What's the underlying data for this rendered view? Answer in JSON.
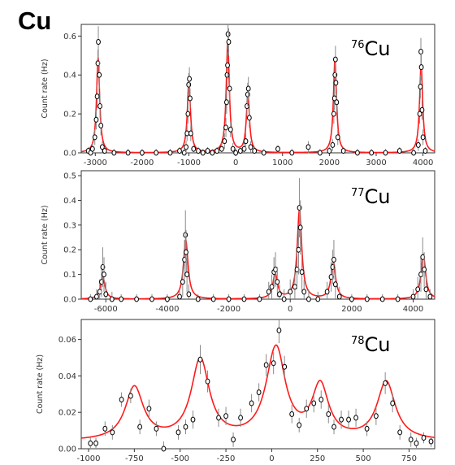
{
  "figure_label": "Cu",
  "colors": {
    "fit": "#ff1a1a",
    "points": "#000000",
    "errorbar": "#8a8a8a",
    "frame": "#333333"
  },
  "chart_data": [
    {
      "type": "scatter",
      "isotope": {
        "mass": "76",
        "symbol": "Cu"
      },
      "ylabel": "Count rate (Hz)",
      "xlim": [
        -3300,
        4250
      ],
      "ylim": [
        0,
        0.66
      ],
      "xticks": [
        -3000,
        -2000,
        -1000,
        0,
        1000,
        2000,
        3000,
        4000
      ],
      "yticks": [
        0.0,
        0.2,
        0.4,
        0.6
      ],
      "ytick_labels": [
        "0.0",
        "0.2",
        "0.4",
        "0.6"
      ],
      "fit_peaks": [
        [
          -2940,
          0.49,
          40
        ],
        [
          -1000,
          0.37,
          40
        ],
        [
          -170,
          0.57,
          40
        ],
        [
          260,
          0.3,
          40
        ],
        [
          2120,
          0.48,
          40
        ],
        [
          3960,
          0.45,
          40
        ]
      ],
      "points": [
        [
          -3150,
          0.01,
          0.02
        ],
        [
          -3100,
          0.0,
          0.01
        ],
        [
          -3060,
          0.02,
          0.03
        ],
        [
          -3010,
          0.08,
          0.04
        ],
        [
          -2980,
          0.17,
          0.05
        ],
        [
          -2960,
          0.29,
          0.06
        ],
        [
          -2945,
          0.46,
          0.07
        ],
        [
          -2935,
          0.57,
          0.08
        ],
        [
          -2915,
          0.4,
          0.07
        ],
        [
          -2900,
          0.24,
          0.06
        ],
        [
          -2880,
          0.14,
          0.05
        ],
        [
          -2850,
          0.03,
          0.03
        ],
        [
          -2800,
          0.01,
          0.02
        ],
        [
          -2600,
          0.0,
          0.02
        ],
        [
          -2300,
          0.0,
          0.02
        ],
        [
          -2000,
          0.0,
          0.02
        ],
        [
          -1700,
          0.0,
          0.02
        ],
        [
          -1400,
          0.0,
          0.02
        ],
        [
          -1200,
          0.01,
          0.02
        ],
        [
          -1100,
          0.0,
          0.02
        ],
        [
          -1060,
          0.03,
          0.03
        ],
        [
          -1040,
          0.1,
          0.04
        ],
        [
          -1020,
          0.2,
          0.05
        ],
        [
          -1005,
          0.35,
          0.06
        ],
        [
          -990,
          0.38,
          0.06
        ],
        [
          -975,
          0.28,
          0.05
        ],
        [
          -960,
          0.1,
          0.04
        ],
        [
          -900,
          0.02,
          0.02
        ],
        [
          -800,
          0.01,
          0.02
        ],
        [
          -700,
          0.0,
          0.02
        ],
        [
          -600,
          0.01,
          0.02
        ],
        [
          -500,
          0.0,
          0.02
        ],
        [
          -400,
          0.01,
          0.02
        ],
        [
          -300,
          0.02,
          0.03
        ],
        [
          -240,
          0.06,
          0.04
        ],
        [
          -210,
          0.13,
          0.05
        ],
        [
          -195,
          0.26,
          0.06
        ],
        [
          -185,
          0.4,
          0.07
        ],
        [
          -175,
          0.45,
          0.07
        ],
        [
          -165,
          0.61,
          0.08
        ],
        [
          -150,
          0.57,
          0.07
        ],
        [
          -130,
          0.33,
          0.06
        ],
        [
          -110,
          0.12,
          0.04
        ],
        [
          -60,
          0.02,
          0.03
        ],
        [
          0,
          0.0,
          0.02
        ],
        [
          100,
          0.01,
          0.02
        ],
        [
          180,
          0.02,
          0.03
        ],
        [
          215,
          0.06,
          0.04
        ],
        [
          240,
          0.24,
          0.05
        ],
        [
          255,
          0.3,
          0.06
        ],
        [
          270,
          0.33,
          0.06
        ],
        [
          290,
          0.18,
          0.05
        ],
        [
          320,
          0.03,
          0.03
        ],
        [
          400,
          0.01,
          0.02
        ],
        [
          600,
          0.0,
          0.02
        ],
        [
          900,
          0.02,
          0.02
        ],
        [
          1200,
          0.0,
          0.02
        ],
        [
          1550,
          0.03,
          0.03
        ],
        [
          1800,
          0.0,
          0.02
        ],
        [
          2000,
          0.01,
          0.02
        ],
        [
          2070,
          0.04,
          0.03
        ],
        [
          2095,
          0.2,
          0.05
        ],
        [
          2110,
          0.28,
          0.06
        ],
        [
          2120,
          0.4,
          0.06
        ],
        [
          2130,
          0.48,
          0.07
        ],
        [
          2140,
          0.36,
          0.06
        ],
        [
          2155,
          0.26,
          0.05
        ],
        [
          2180,
          0.08,
          0.04
        ],
        [
          2300,
          0.01,
          0.02
        ],
        [
          2600,
          0.0,
          0.02
        ],
        [
          2900,
          0.0,
          0.02
        ],
        [
          3200,
          0.0,
          0.02
        ],
        [
          3500,
          0.01,
          0.02
        ],
        [
          3800,
          0.0,
          0.02
        ],
        [
          3900,
          0.04,
          0.03
        ],
        [
          3930,
          0.2,
          0.05
        ],
        [
          3945,
          0.34,
          0.06
        ],
        [
          3955,
          0.52,
          0.07
        ],
        [
          3965,
          0.44,
          0.07
        ],
        [
          3980,
          0.22,
          0.05
        ],
        [
          4000,
          0.08,
          0.04
        ],
        [
          4050,
          0.01,
          0.02
        ]
      ]
    },
    {
      "type": "scatter",
      "isotope": {
        "mass": "77",
        "symbol": "Cu"
      },
      "ylabel": "Count rate (Hz)",
      "xlim": [
        -6800,
        4700
      ],
      "ylim": [
        0,
        0.52
      ],
      "xticks": [
        -6000,
        -4000,
        -2000,
        0,
        2000,
        4000
      ],
      "yticks": [
        0.0,
        0.1,
        0.2,
        0.3,
        0.4,
        0.5
      ],
      "ytick_labels": [
        "0.0",
        "0.1",
        "0.2",
        "0.3",
        "0.4",
        "0.5"
      ],
      "fit_peaks": [
        [
          -6100,
          0.09,
          90
        ],
        [
          -3400,
          0.24,
          90
        ],
        [
          -490,
          0.1,
          90
        ],
        [
          300,
          0.36,
          90
        ],
        [
          1400,
          0.15,
          90
        ],
        [
          4330,
          0.18,
          90
        ]
      ],
      "points": [
        [
          -6500,
          0.0,
          0.02
        ],
        [
          -6300,
          0.01,
          0.03
        ],
        [
          -6200,
          0.03,
          0.05
        ],
        [
          -6140,
          0.07,
          0.06
        ],
        [
          -6100,
          0.13,
          0.08
        ],
        [
          -6060,
          0.1,
          0.07
        ],
        [
          -6000,
          0.02,
          0.05
        ],
        [
          -5800,
          0.0,
          0.03
        ],
        [
          -5500,
          0.0,
          0.02
        ],
        [
          -5000,
          0.0,
          0.02
        ],
        [
          -4500,
          0.0,
          0.02
        ],
        [
          -4000,
          0.0,
          0.02
        ],
        [
          -3600,
          0.01,
          0.03
        ],
        [
          -3500,
          0.07,
          0.06
        ],
        [
          -3440,
          0.16,
          0.08
        ],
        [
          -3410,
          0.26,
          0.1
        ],
        [
          -3390,
          0.19,
          0.09
        ],
        [
          -3360,
          0.1,
          0.07
        ],
        [
          -3300,
          0.02,
          0.04
        ],
        [
          -3000,
          0.0,
          0.02
        ],
        [
          -2500,
          0.0,
          0.02
        ],
        [
          -2000,
          0.0,
          0.02
        ],
        [
          -1500,
          0.0,
          0.02
        ],
        [
          -1000,
          0.0,
          0.02
        ],
        [
          -700,
          0.03,
          0.04
        ],
        [
          -600,
          0.05,
          0.05
        ],
        [
          -530,
          0.11,
          0.06
        ],
        [
          -480,
          0.12,
          0.07
        ],
        [
          -420,
          0.07,
          0.06
        ],
        [
          -350,
          0.02,
          0.04
        ],
        [
          -200,
          0.0,
          0.04
        ],
        [
          0,
          0.03,
          0.05
        ],
        [
          150,
          0.05,
          0.06
        ],
        [
          220,
          0.12,
          0.08
        ],
        [
          270,
          0.2,
          0.1
        ],
        [
          300,
          0.37,
          0.12
        ],
        [
          330,
          0.29,
          0.11
        ],
        [
          380,
          0.11,
          0.08
        ],
        [
          450,
          0.03,
          0.05
        ],
        [
          600,
          0.0,
          0.04
        ],
        [
          900,
          0.0,
          0.03
        ],
        [
          1200,
          0.03,
          0.04
        ],
        [
          1330,
          0.09,
          0.06
        ],
        [
          1380,
          0.13,
          0.07
        ],
        [
          1420,
          0.16,
          0.08
        ],
        [
          1470,
          0.06,
          0.06
        ],
        [
          1600,
          0.01,
          0.04
        ],
        [
          2000,
          0.0,
          0.02
        ],
        [
          2500,
          0.0,
          0.02
        ],
        [
          3000,
          0.0,
          0.02
        ],
        [
          3500,
          0.0,
          0.02
        ],
        [
          4000,
          0.01,
          0.03
        ],
        [
          4150,
          0.04,
          0.05
        ],
        [
          4250,
          0.1,
          0.07
        ],
        [
          4310,
          0.17,
          0.08
        ],
        [
          4360,
          0.12,
          0.07
        ],
        [
          4420,
          0.04,
          0.05
        ],
        [
          4550,
          0.01,
          0.03
        ]
      ]
    },
    {
      "type": "scatter",
      "isotope": {
        "mass": "78",
        "symbol": "Cu"
      },
      "ylabel": "Count rate (Hz)",
      "xlim": [
        -1040,
        890
      ],
      "ylim": [
        0,
        0.071
      ],
      "xticks": [
        -1000,
        -750,
        -500,
        -250,
        0,
        250,
        500,
        750
      ],
      "yticks": [
        0.0,
        0.02,
        0.04,
        0.06
      ],
      "ytick_labels": [
        "0.00",
        "0.02",
        "0.04",
        "0.06"
      ],
      "fit_baseline": 0.004,
      "fit_peaks": [
        [
          -750,
          0.029,
          60
        ],
        [
          -390,
          0.044,
          60
        ],
        [
          20,
          0.046,
          65
        ],
        [
          40,
          0.005,
          40
        ],
        [
          265,
          0.029,
          55
        ],
        [
          625,
          0.032,
          60
        ]
      ],
      "points": [
        [
          -990,
          0.003,
          0.003
        ],
        [
          -960,
          0.003,
          0.003
        ],
        [
          -910,
          0.011,
          0.004
        ],
        [
          -870,
          0.009,
          0.004
        ],
        [
          -820,
          0.027,
          0.004
        ],
        [
          -770,
          0.029,
          0.004
        ],
        [
          -720,
          0.012,
          0.004
        ],
        [
          -670,
          0.022,
          0.005
        ],
        [
          -630,
          0.011,
          0.004
        ],
        [
          -590,
          0.0,
          0.004
        ],
        [
          -510,
          0.009,
          0.004
        ],
        [
          -470,
          0.012,
          0.004
        ],
        [
          -430,
          0.016,
          0.005
        ],
        [
          -390,
          0.049,
          0.008
        ],
        [
          -350,
          0.037,
          0.006
        ],
        [
          -290,
          0.017,
          0.005
        ],
        [
          -250,
          0.018,
          0.005
        ],
        [
          -210,
          0.005,
          0.004
        ],
        [
          -170,
          0.017,
          0.005
        ],
        [
          -110,
          0.025,
          0.005
        ],
        [
          -70,
          0.031,
          0.005
        ],
        [
          -30,
          0.046,
          0.006
        ],
        [
          10,
          0.047,
          0.006
        ],
        [
          40,
          0.065,
          0.007
        ],
        [
          70,
          0.045,
          0.006
        ],
        [
          110,
          0.019,
          0.005
        ],
        [
          150,
          0.013,
          0.004
        ],
        [
          190,
          0.022,
          0.005
        ],
        [
          230,
          0.025,
          0.005
        ],
        [
          270,
          0.027,
          0.005
        ],
        [
          310,
          0.019,
          0.005
        ],
        [
          340,
          0.012,
          0.004
        ],
        [
          380,
          0.016,
          0.005
        ],
        [
          420,
          0.016,
          0.005
        ],
        [
          460,
          0.017,
          0.005
        ],
        [
          520,
          0.011,
          0.004
        ],
        [
          570,
          0.018,
          0.005
        ],
        [
          620,
          0.036,
          0.006
        ],
        [
          660,
          0.025,
          0.005
        ],
        [
          700,
          0.009,
          0.004
        ],
        [
          760,
          0.005,
          0.004
        ],
        [
          790,
          0.003,
          0.003
        ],
        [
          830,
          0.006,
          0.003
        ],
        [
          870,
          0.004,
          0.003
        ]
      ]
    }
  ]
}
